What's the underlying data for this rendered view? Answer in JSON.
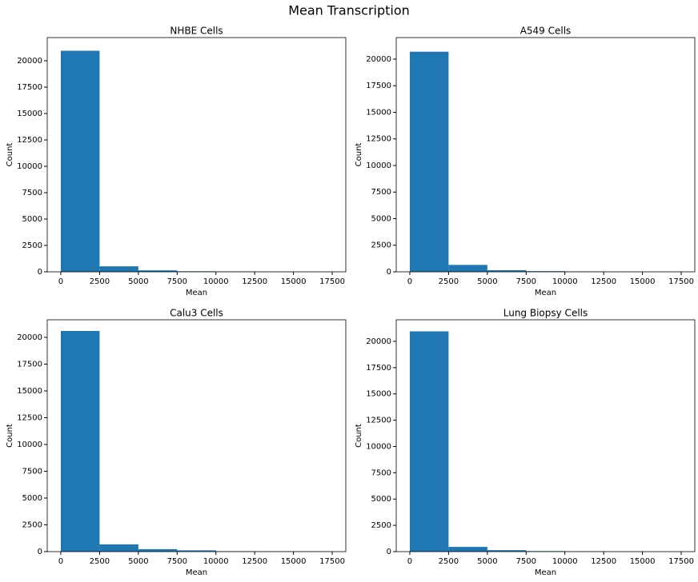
{
  "title": "Mean Transcription",
  "chart_data": [
    {
      "type": "histogram",
      "title": "NHBE Cells",
      "x_label": "Mean",
      "y_label": "Count",
      "color": "#1f77b4",
      "grid": false,
      "bins": [
        0,
        2500,
        5000,
        7500,
        10000,
        12500,
        15000,
        17500
      ],
      "values": [
        20950,
        520,
        140,
        50,
        30,
        15,
        10
      ],
      "xlim": [
        -875,
        18375
      ],
      "xticks": [
        0,
        2500,
        5000,
        7500,
        10000,
        12500,
        15000,
        17500
      ],
      "ylim": [
        0,
        22200
      ],
      "yticks": [
        0,
        2500,
        5000,
        7500,
        10000,
        12500,
        15000,
        17500,
        20000
      ]
    },
    {
      "type": "histogram",
      "title": "A549 Cells",
      "x_label": "Mean",
      "y_label": "Count",
      "color": "#1f77b4",
      "grid": false,
      "bins": [
        0,
        2500,
        5000,
        7500,
        10000,
        12500,
        15000,
        17500
      ],
      "values": [
        20700,
        650,
        150,
        60,
        30,
        15,
        10
      ],
      "xlim": [
        -875,
        18375
      ],
      "xticks": [
        0,
        2500,
        5000,
        7500,
        10000,
        12500,
        15000,
        17500
      ],
      "ylim": [
        0,
        22030
      ],
      "yticks": [
        0,
        2500,
        5000,
        7500,
        10000,
        12500,
        15000,
        17500,
        20000
      ]
    },
    {
      "type": "histogram",
      "title": "Calu3 Cells",
      "x_label": "Mean",
      "y_label": "Count",
      "color": "#1f77b4",
      "grid": false,
      "bins": [
        0,
        2500,
        5000,
        7500,
        10000,
        12500,
        15000,
        17500
      ],
      "values": [
        20600,
        680,
        230,
        120,
        40,
        20,
        15
      ],
      "xlim": [
        -875,
        18375
      ],
      "xticks": [
        0,
        2500,
        5000,
        7500,
        10000,
        12500,
        15000,
        17500
      ],
      "ylim": [
        0,
        21640
      ],
      "yticks": [
        0,
        2500,
        5000,
        7500,
        10000,
        12500,
        15000,
        17500,
        20000
      ]
    },
    {
      "type": "histogram",
      "title": "Lung Biopsy Cells",
      "x_label": "Mean",
      "y_label": "Count",
      "color": "#1f77b4",
      "grid": false,
      "bins": [
        0,
        2500,
        5000,
        7500,
        10000,
        12500,
        15000,
        17500
      ],
      "values": [
        20950,
        450,
        140,
        50,
        25,
        10,
        0
      ],
      "xlim": [
        -875,
        18375
      ],
      "xticks": [
        0,
        2500,
        5000,
        7500,
        10000,
        12500,
        15000,
        17500
      ],
      "ylim": [
        0,
        22050
      ],
      "yticks": [
        0,
        2500,
        5000,
        7500,
        10000,
        12500,
        15000,
        17500,
        20000
      ]
    }
  ]
}
